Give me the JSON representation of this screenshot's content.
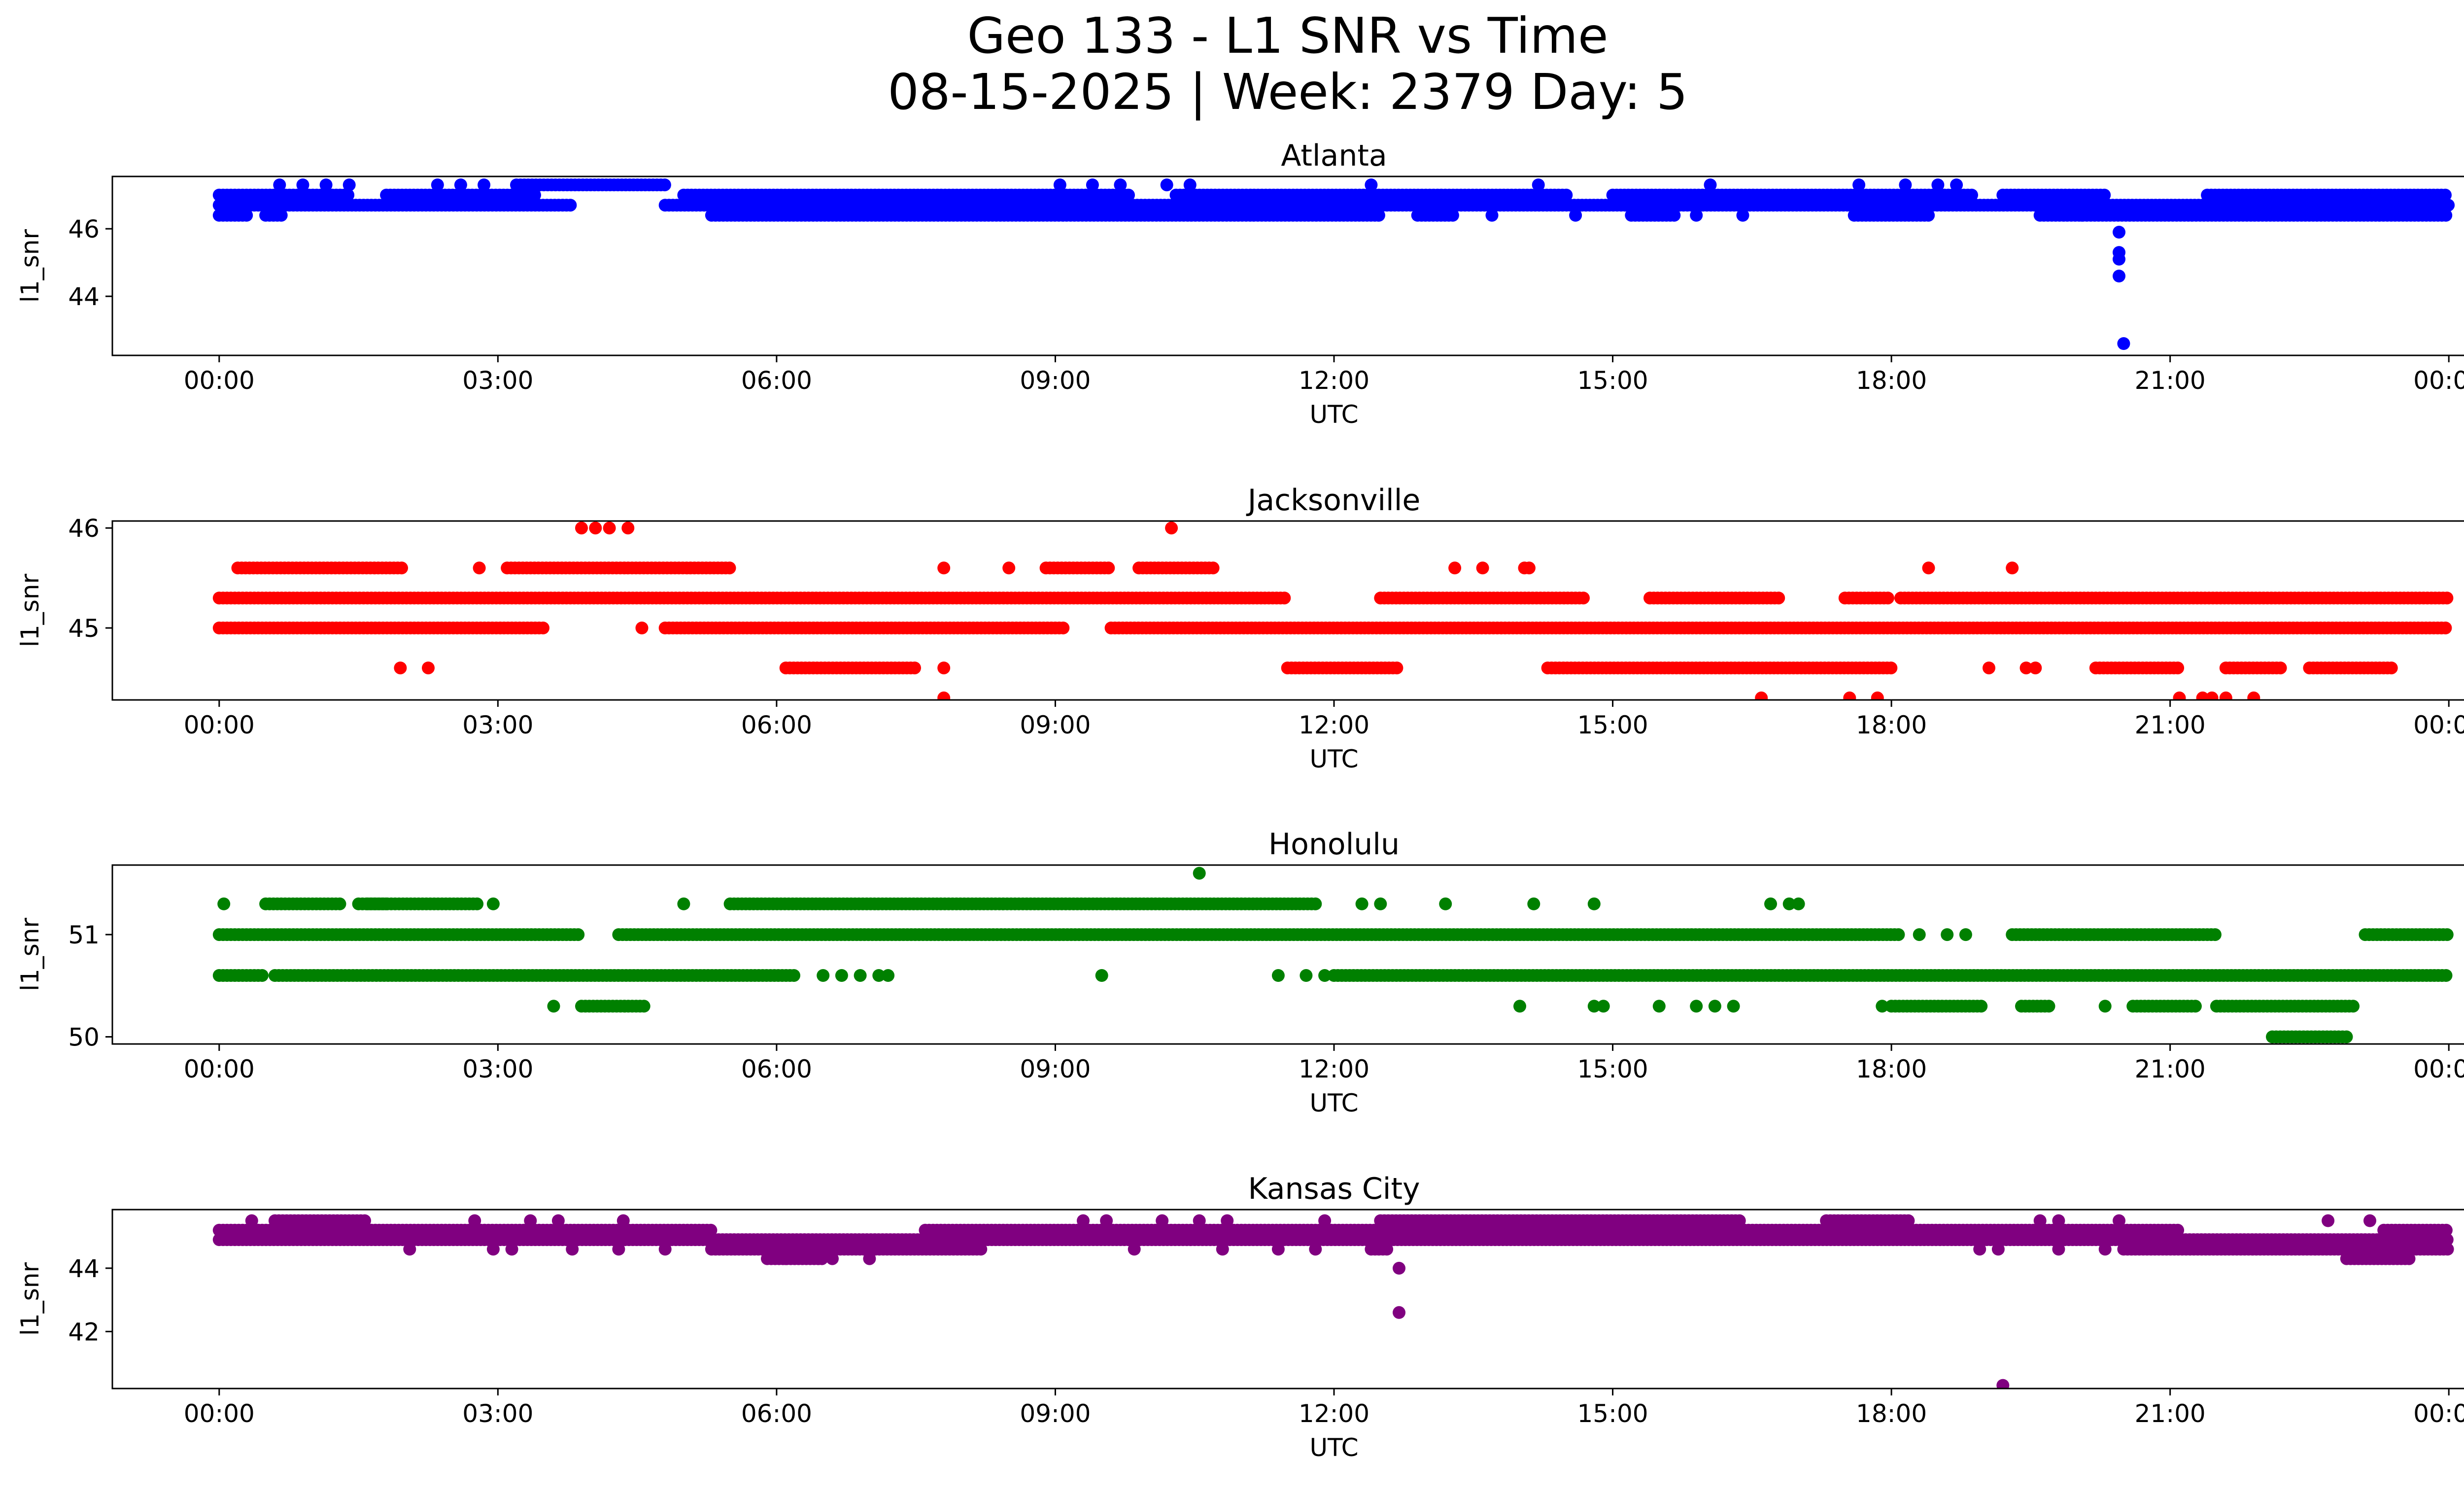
{
  "figure": {
    "title_line1": "Geo 133 - L1 SNR vs Time",
    "title_line2": "08-15-2025 | Week: 2379 Day: 5"
  },
  "chart_data": [
    {
      "type": "scatter",
      "title": "Atlanta",
      "xlabel": "UTC",
      "ylabel": "l1_snr",
      "color": "#0000ff",
      "x_unit": "hours UTC",
      "xlim": [
        -1.15,
        25.15
      ],
      "xticks": [
        0,
        3,
        6,
        9,
        12,
        15,
        18,
        21,
        24
      ],
      "xtick_labels": [
        "00:00",
        "03:00",
        "06:00",
        "09:00",
        "12:00",
        "15:00",
        "18:00",
        "21:00",
        "00:00"
      ],
      "ylim": [
        42.25,
        47.55
      ],
      "yticks": [
        44,
        46
      ],
      "ytick_labels": [
        "44",
        "46"
      ],
      "bands": [
        {
          "y": 46.4,
          "segments": [
            [
              0,
              0.3
            ],
            [
              0.5,
              0.7
            ],
            [
              5.3,
              12.5
            ],
            [
              12.9,
              13.3
            ],
            [
              15.2,
              15.7
            ],
            [
              17.6,
              18.4
            ],
            [
              19.6,
              24
            ]
          ]
        },
        {
          "y": 46.7,
          "segments": [
            [
              0,
              3.8
            ],
            [
              4.8,
              24
            ]
          ]
        },
        {
          "y": 47.0,
          "segments": [
            [
              0,
              1.4
            ],
            [
              1.8,
              3.4
            ],
            [
              5.0,
              9.8
            ],
            [
              10.3,
              14.5
            ],
            [
              15.0,
              18.9
            ],
            [
              19.2,
              20.3
            ],
            [
              21.4,
              24
            ]
          ]
        },
        {
          "y": 47.3,
          "segments": [
            [
              3.2,
              4.8
            ]
          ]
        }
      ],
      "sparse": [
        {
          "y": 47.3,
          "x": [
            0.65,
            0.9,
            1.15,
            1.4,
            2.35,
            2.6,
            2.85,
            9.05,
            9.4,
            9.7,
            10.2,
            10.45,
            12.4,
            14.2,
            16.05,
            17.65,
            18.15,
            18.5,
            18.7
          ]
        },
        {
          "y": 46.4,
          "x": [
            13.7,
            14.6,
            15.9,
            16.4,
            20.05
          ]
        }
      ],
      "points": [
        {
          "x": 20.45,
          "y": 45.9
        },
        {
          "x": 20.45,
          "y": 45.3
        },
        {
          "x": 20.45,
          "y": 45.1
        },
        {
          "x": 20.45,
          "y": 44.6
        },
        {
          "x": 20.5,
          "y": 42.6
        }
      ]
    },
    {
      "type": "scatter",
      "title": "Jacksonville",
      "xlabel": "UTC",
      "ylabel": "l1_snr",
      "color": "#ff0000",
      "x_unit": "hours UTC",
      "xlim": [
        -1.15,
        25.15
      ],
      "xticks": [
        0,
        3,
        6,
        9,
        12,
        15,
        18,
        21,
        24
      ],
      "xtick_labels": [
        "00:00",
        "03:00",
        "06:00",
        "09:00",
        "12:00",
        "15:00",
        "18:00",
        "21:00",
        "00:00"
      ],
      "ylim": [
        44.28,
        46.07
      ],
      "yticks": [
        45,
        46
      ],
      "ytick_labels": [
        "45",
        "46"
      ],
      "bands": [
        {
          "y": 44.6,
          "segments": [
            [
              6.1,
              7.5
            ],
            [
              11.5,
              12.7
            ],
            [
              14.3,
              18.0
            ],
            [
              20.2,
              21.1
            ],
            [
              21.6,
              22.2
            ],
            [
              22.5,
              23.4
            ]
          ]
        },
        {
          "y": 45.0,
          "segments": [
            [
              0,
              3.5
            ],
            [
              4.8,
              9.1
            ],
            [
              9.6,
              24
            ]
          ]
        },
        {
          "y": 45.3,
          "segments": [
            [
              0,
              11.5
            ],
            [
              12.5,
              14.7
            ],
            [
              15.4,
              16.8
            ],
            [
              17.5,
              18.0
            ],
            [
              18.1,
              24
            ]
          ]
        },
        {
          "y": 45.6,
          "segments": [
            [
              0.2,
              2.0
            ],
            [
              3.1,
              5.5
            ],
            [
              8.9,
              9.6
            ],
            [
              9.9,
              10.7
            ]
          ]
        }
      ],
      "sparse": [
        {
          "y": 46.0,
          "x": [
            3.9,
            4.05,
            4.2,
            4.4,
            10.25
          ]
        },
        {
          "y": 45.6,
          "x": [
            2.8,
            7.8,
            8.5,
            13.3,
            13.6,
            14.05,
            14.1,
            18.4,
            19.3
          ]
        },
        {
          "y": 45.0,
          "x": [
            4.55
          ]
        },
        {
          "y": 44.6,
          "x": [
            1.95,
            2.25,
            7.8,
            19.05,
            19.45,
            19.55
          ]
        },
        {
          "y": 44.3,
          "x": [
            7.8,
            16.6,
            17.55,
            17.85,
            21.1,
            21.35,
            21.45,
            21.6,
            21.9
          ]
        }
      ],
      "points": []
    },
    {
      "type": "scatter",
      "title": "Honolulu",
      "xlabel": "UTC",
      "ylabel": "l1_snr",
      "color": "#008000",
      "x_unit": "hours UTC",
      "xlim": [
        -1.15,
        25.15
      ],
      "xticks": [
        0,
        3,
        6,
        9,
        12,
        15,
        18,
        21,
        24
      ],
      "xtick_labels": [
        "00:00",
        "03:00",
        "06:00",
        "09:00",
        "12:00",
        "15:00",
        "18:00",
        "21:00",
        "00:00"
      ],
      "ylim": [
        49.93,
        51.68
      ],
      "yticks": [
        50,
        51
      ],
      "ytick_labels": [
        "50",
        "51"
      ],
      "bands": [
        {
          "y": 50.0,
          "segments": [
            [
              22.1,
              22.9
            ]
          ]
        },
        {
          "y": 50.3,
          "segments": [
            [
              3.9,
              4.6
            ],
            [
              18.0,
              19.0
            ],
            [
              19.4,
              19.7
            ],
            [
              20.6,
              21.3
            ],
            [
              21.5,
              23.0
            ]
          ]
        },
        {
          "y": 50.6,
          "segments": [
            [
              0,
              0.5
            ],
            [
              0.6,
              6.2
            ],
            [
              12.0,
              24
            ]
          ]
        },
        {
          "y": 51.0,
          "segments": [
            [
              0,
              3.9
            ],
            [
              4.3,
              18.1
            ],
            [
              19.3,
              21.5
            ],
            [
              23.1,
              24
            ]
          ]
        },
        {
          "y": 51.3,
          "segments": [
            [
              0.5,
              1.3
            ],
            [
              1.5,
              1.8
            ],
            [
              1.6,
              2.8
            ],
            [
              5.5,
              11.8
            ]
          ]
        }
      ],
      "sparse": [
        {
          "y": 51.6,
          "x": [
            10.55
          ]
        },
        {
          "y": 51.3,
          "x": [
            0.05,
            2.95,
            5.0,
            12.3,
            12.5,
            13.2,
            14.15,
            14.8,
            16.7,
            16.9,
            17.0
          ]
        },
        {
          "y": 51.0,
          "x": [
            18.3,
            18.6,
            18.8
          ]
        },
        {
          "y": 50.6,
          "x": [
            6.5,
            6.7,
            6.9,
            7.1,
            7.2,
            9.5,
            11.4,
            11.7,
            11.9
          ]
        },
        {
          "y": 50.3,
          "x": [
            3.6,
            14.0,
            14.8,
            14.9,
            15.5,
            15.9,
            16.1,
            16.3,
            17.9,
            20.3
          ]
        }
      ],
      "points": []
    },
    {
      "type": "scatter",
      "title": "Kansas City",
      "xlabel": "UTC",
      "ylabel": "l1_snr",
      "color": "#800080",
      "x_unit": "hours UTC",
      "xlim": [
        -1.15,
        25.15
      ],
      "xticks": [
        0,
        3,
        6,
        9,
        12,
        15,
        18,
        21,
        24
      ],
      "xtick_labels": [
        "00:00",
        "03:00",
        "06:00",
        "09:00",
        "12:00",
        "15:00",
        "18:00",
        "21:00",
        "00:00"
      ],
      "ylim": [
        40.2,
        45.85
      ],
      "yticks": [
        42,
        44
      ],
      "ytick_labels": [
        "42",
        "44"
      ],
      "bands": [
        {
          "y": 44.3,
          "segments": [
            [
              5.9,
              6.5
            ],
            [
              22.9,
              23.6
            ]
          ]
        },
        {
          "y": 44.6,
          "segments": [
            [
              5.3,
              8.2
            ],
            [
              12.4,
              12.6
            ],
            [
              20.5,
              24
            ]
          ]
        },
        {
          "y": 44.9,
          "segments": [
            [
              0,
              24
            ]
          ]
        },
        {
          "y": 45.2,
          "segments": [
            [
              0,
              5.3
            ],
            [
              7.6,
              21.1
            ],
            [
              23.3,
              24
            ]
          ]
        },
        {
          "y": 45.5,
          "segments": [
            [
              0.6,
              1.6
            ],
            [
              12.5,
              16.4
            ],
            [
              17.3,
              18.2
            ]
          ]
        }
      ],
      "sparse": [
        {
          "y": 45.5,
          "x": [
            0.35,
            2.75,
            3.35,
            3.65,
            4.35,
            9.3,
            9.55,
            10.15,
            10.55,
            10.85,
            11.9,
            19.6,
            19.8,
            20.45,
            22.7,
            23.15
          ]
        },
        {
          "y": 44.6,
          "x": [
            2.05,
            2.95,
            3.15,
            3.8,
            4.3,
            4.8,
            9.85,
            10.8,
            11.4,
            11.8,
            18.95,
            19.15,
            19.8,
            20.3
          ]
        },
        {
          "y": 44.3,
          "x": [
            6.1,
            6.45,
            6.6,
            7.0
          ]
        }
      ],
      "points": [
        {
          "x": 12.7,
          "y": 44.0
        },
        {
          "x": 12.7,
          "y": 42.6
        },
        {
          "x": 19.2,
          "y": 40.3
        }
      ]
    }
  ]
}
